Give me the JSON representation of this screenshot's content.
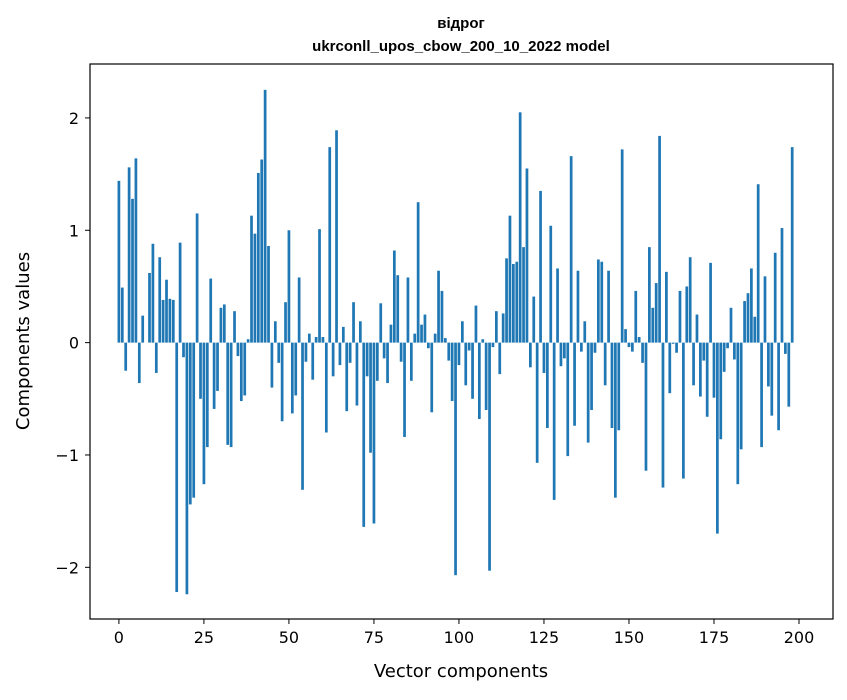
{
  "chart_data": {
    "type": "bar",
    "title_line1": "відрог",
    "title_line2": "ukrconll_upos_cbow_200_10_2022 model",
    "xlabel": "Vector components",
    "ylabel": "Components values",
    "xlim": [
      -8.5,
      210
    ],
    "ylim": [
      -2.46,
      2.48
    ],
    "x_ticks": [
      0,
      25,
      50,
      75,
      100,
      125,
      150,
      175,
      200
    ],
    "x_tick_labels": [
      "0",
      "25",
      "50",
      "75",
      "100",
      "125",
      "150",
      "175",
      "200"
    ],
    "y_ticks": [
      -2,
      -1,
      0,
      1,
      2
    ],
    "y_tick_labels": [
      "−2",
      "−1",
      "0",
      "1",
      "2"
    ],
    "bar_color": "#1f77b4",
    "values": [
      1.44,
      0.49,
      -0.25,
      1.56,
      1.28,
      1.64,
      -0.36,
      0.24,
      0.0,
      0.62,
      0.88,
      -0.27,
      0.76,
      0.38,
      0.56,
      0.39,
      0.38,
      -2.22,
      0.89,
      -0.13,
      -2.24,
      -1.44,
      -1.38,
      1.15,
      -0.5,
      -1.26,
      -0.93,
      0.57,
      -0.59,
      -0.43,
      0.31,
      0.34,
      -0.91,
      -0.93,
      0.28,
      -0.12,
      -0.52,
      -0.47,
      0.03,
      1.13,
      0.97,
      1.51,
      1.63,
      2.25,
      0.86,
      -0.4,
      0.19,
      -0.18,
      -0.7,
      0.36,
      1.0,
      -0.63,
      -0.47,
      0.58,
      -1.31,
      -0.17,
      0.08,
      -0.33,
      0.05,
      1.01,
      0.05,
      -0.8,
      1.74,
      -0.3,
      1.89,
      -0.2,
      0.14,
      -0.61,
      -0.18,
      0.36,
      -0.56,
      0.19,
      -1.64,
      -0.3,
      -0.98,
      -1.61,
      -0.34,
      0.35,
      -0.14,
      -0.36,
      0.16,
      0.82,
      0.6,
      -0.17,
      -0.84,
      0.58,
      -0.34,
      0.08,
      1.25,
      0.16,
      0.25,
      -0.05,
      -0.62,
      0.08,
      0.64,
      0.46,
      0.04,
      -0.16,
      -0.52,
      -2.07,
      -0.2,
      0.19,
      -0.38,
      -0.07,
      -0.5,
      0.33,
      -0.68,
      0.03,
      -0.6,
      -2.03,
      -0.04,
      0.28,
      -0.28,
      0.26,
      0.75,
      1.13,
      0.7,
      0.72,
      2.05,
      0.85,
      1.55,
      -0.22,
      0.41,
      -1.07,
      1.35,
      -0.27,
      -0.76,
      1.04,
      -1.4,
      0.66,
      -0.21,
      -0.14,
      -1.01,
      1.66,
      -0.74,
      0.64,
      -0.08,
      0.19,
      -0.89,
      -0.6,
      -0.09,
      0.74,
      0.72,
      -0.38,
      0.64,
      -0.76,
      -1.38,
      -0.78,
      1.72,
      0.12,
      -0.04,
      -0.08,
      0.46,
      0.05,
      -0.18,
      -1.14,
      0.85,
      0.31,
      0.53,
      1.84,
      -1.29,
      0.63,
      -0.45,
      -0.01,
      -0.09,
      0.46,
      -1.21,
      0.5,
      0.76,
      -0.38,
      0.25,
      -0.48,
      -0.16,
      -0.66,
      0.71,
      -0.49,
      -1.7,
      -0.86,
      -0.26,
      -0.05,
      0.31,
      -0.15,
      -1.26,
      -0.95,
      0.37,
      0.44,
      0.66,
      0.23,
      1.41,
      -0.93,
      0.59,
      -0.39,
      -0.65,
      0.8,
      -0.78,
      1.02,
      -0.1,
      -0.57,
      1.74
    ]
  }
}
